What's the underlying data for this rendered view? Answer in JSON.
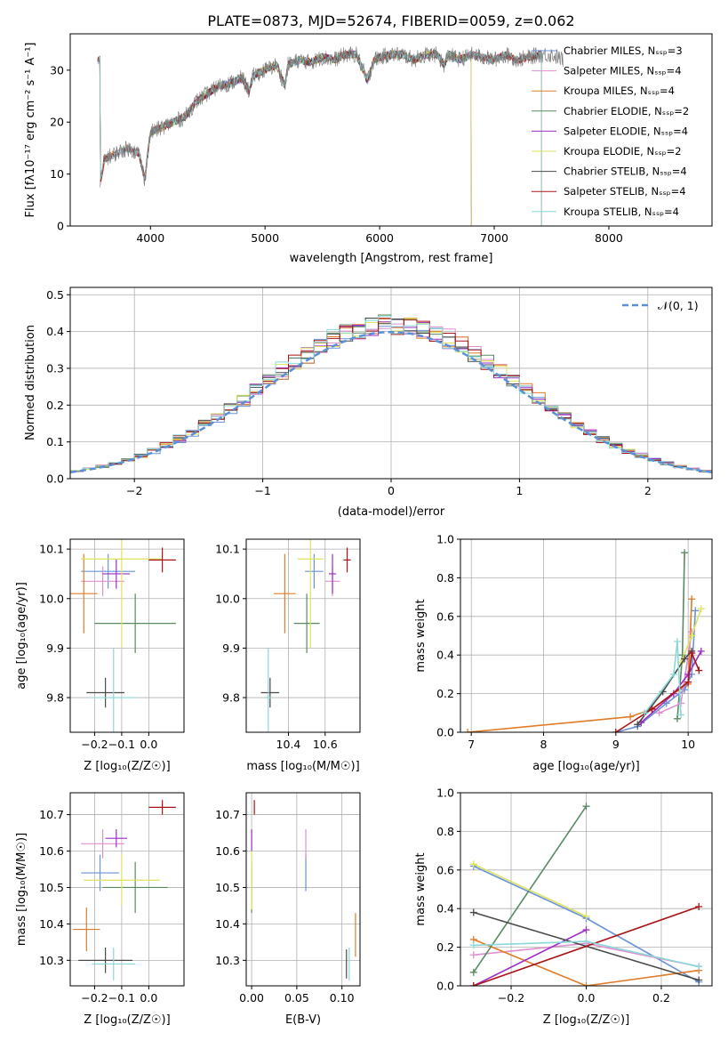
{
  "figure_title": "PLATE=0873, MJD=52674, FIBERID=0059, z=0.062",
  "colors": {
    "chabrier_miles": "#6a93d8",
    "salpeter_miles": "#e08fd0",
    "kroupa_miles": "#e07b28",
    "chabrier_elodie": "#5a8a62",
    "salpeter_elodie": "#9b2fc2",
    "kroupa_elodie": "#dde35a",
    "chabrier_stelib": "#4a4a4a",
    "salpeter_stelib": "#a81418",
    "kroupa_stelib": "#8ad8d8",
    "gaussian": "#5b8fd6"
  },
  "chart_data": [
    {
      "id": "spectrum",
      "type": "line",
      "title": "PLATE=0873, MJD=52674, FIBERID=0059, z=0.062",
      "xlabel": "wavelength [Angstrom, rest frame]",
      "ylabel": "Flux [fλ10⁻¹⁷ erg cm⁻² s⁻¹ A⁻¹]",
      "xlim": [
        3300,
        8900
      ],
      "ylim": [
        0,
        37
      ],
      "xticks": [
        "4000",
        "5000",
        "6000",
        "7000",
        "8000"
      ],
      "yticks": [
        "0",
        "10",
        "20",
        "30"
      ],
      "grid": false,
      "legend_position": "right",
      "data_trace": {
        "x": [
          3560,
          3600,
          3700,
          3800,
          3900,
          3950,
          4000,
          4100,
          4200,
          4300,
          4400,
          4500,
          4600,
          4700,
          4800,
          4861,
          4900,
          5000,
          5100,
          5175,
          5200,
          5300,
          5400,
          5500,
          5600,
          5700,
          5800,
          5893,
          5950,
          6000,
          6100,
          6200,
          6300,
          6400,
          6500,
          6563,
          6600,
          6700,
          6800,
          6900,
          7000,
          7100,
          7200,
          7300,
          7400,
          7500,
          7600
        ],
        "y": [
          8,
          13,
          14,
          15,
          14,
          9,
          18,
          19,
          20,
          21,
          24,
          25.5,
          27,
          27.5,
          28.5,
          26,
          29,
          30,
          31,
          27,
          31,
          32,
          31.5,
          32.5,
          32,
          33,
          33,
          28,
          32,
          32.5,
          33,
          33,
          32,
          33,
          33,
          31,
          33,
          32,
          33,
          32.5,
          32,
          33,
          32,
          32.5,
          33,
          33,
          32
        ]
      },
      "legend": [
        "Chabrier MILES, N_SSP=3",
        "Salpeter MILES, N_SSP=4",
        "Kroupa MILES, N_SSP=4",
        "Chabrier ELODIE, N_SSP=2",
        "Salpeter ELODIE, N_SSP=4",
        "Kroupa ELODIE, N_SSP=2",
        "Chabrier STELIB, N_SSP=4",
        "Salpeter STELIB, N_SSP=4",
        "Kroupa STELIB, N_SSP=4"
      ],
      "model_ranges": [
        {
          "name": "Chabrier MILES",
          "x": [
            3540,
            7410
          ]
        },
        {
          "name": "Salpeter MILES",
          "x": [
            3540,
            7410
          ]
        },
        {
          "name": "Kroupa MILES",
          "x": [
            3540,
            7410
          ]
        },
        {
          "name": "Chabrier ELODIE",
          "x": [
            3900,
            6800
          ]
        },
        {
          "name": "Salpeter ELODIE",
          "x": [
            3900,
            6800
          ]
        },
        {
          "name": "Kroupa ELODIE",
          "x": [
            3900,
            6800
          ]
        },
        {
          "name": "Chabrier STELIB",
          "x": [
            3200,
            7410
          ]
        },
        {
          "name": "Salpeter STELIB",
          "x": [
            3200,
            7410
          ]
        },
        {
          "name": "Kroupa STELIB",
          "x": [
            3200,
            7410
          ]
        }
      ]
    },
    {
      "id": "residual_hist",
      "type": "bar",
      "xlabel": "(data-model)/error",
      "ylabel": "Normed distribution",
      "xlim": [
        -2.5,
        2.5
      ],
      "ylim": [
        0,
        0.52
      ],
      "xticks": [
        "−2",
        "−1",
        "0",
        "1",
        "2"
      ],
      "yticks": [
        "0.0",
        "0.1",
        "0.2",
        "0.3",
        "0.4",
        "0.5"
      ],
      "grid": true,
      "legend_position": "top-right",
      "legend": [
        "𝒩(0, 1)"
      ],
      "bin_width": 0.1,
      "bins_note_hidden": false,
      "series_count": 9
    },
    {
      "id": "age_vs_Z",
      "type": "scatter",
      "xlabel": "Z [log₁₀(Z/Z☉)]",
      "ylabel": "age  [log₁₀(age/yr)]",
      "xlim": [
        -0.29,
        0.13
      ],
      "ylim": [
        9.73,
        10.12
      ],
      "xticks": [
        "−0.2",
        "−0.1",
        "0.0"
      ],
      "yticks": [
        "9.8",
        "9.9",
        "10.0",
        "10.1"
      ],
      "grid": true,
      "points": [
        {
          "name": "Chabrier MILES",
          "x": -0.15,
          "y": 10.055,
          "xerr": 0.1,
          "yerr": 0.035
        },
        {
          "name": "Salpeter MILES",
          "x": -0.17,
          "y": 10.035,
          "xerr": 0.08,
          "yerr": 0.03
        },
        {
          "name": "Kroupa MILES",
          "x": -0.24,
          "y": 10.01,
          "xerr": 0.05,
          "yerr": 0.08
        },
        {
          "name": "Chabrier ELODIE",
          "x": -0.05,
          "y": 9.95,
          "xerr": 0.15,
          "yerr": 0.06
        },
        {
          "name": "Salpeter ELODIE",
          "x": -0.12,
          "y": 10.05,
          "xerr": 0.05,
          "yerr": 0.03
        },
        {
          "name": "Kroupa ELODIE",
          "x": -0.1,
          "y": 10.08,
          "xerr": 0.15,
          "yerr": 0.18
        },
        {
          "name": "Chabrier STELIB",
          "x": -0.16,
          "y": 9.81,
          "xerr": 0.07,
          "yerr": 0.03
        },
        {
          "name": "Salpeter STELIB",
          "x": 0.05,
          "y": 10.078,
          "xerr": 0.05,
          "yerr": 0.025
        },
        {
          "name": "Kroupa STELIB",
          "x": -0.13,
          "y": 9.8,
          "xerr": 0.08,
          "yerr": 0.1
        }
      ]
    },
    {
      "id": "age_vs_mass",
      "type": "scatter",
      "xlabel": "mass [log₁₀(M/M☉)]",
      "ylabel": "",
      "xlim": [
        10.17,
        10.79
      ],
      "ylim": [
        9.73,
        10.12
      ],
      "xticks": [
        "10.4",
        "10.6"
      ],
      "yticks": [
        "9.8",
        "9.9",
        "10.0",
        "10.1"
      ],
      "grid": true,
      "points": [
        {
          "name": "Chabrier MILES",
          "x": 10.54,
          "y": 10.055,
          "xerr": 0.05,
          "yerr": 0.035
        },
        {
          "name": "Salpeter MILES",
          "x": 10.64,
          "y": 10.035,
          "xerr": 0.04,
          "yerr": 0.03
        },
        {
          "name": "Kroupa MILES",
          "x": 10.38,
          "y": 10.01,
          "xerr": 0.06,
          "yerr": 0.08
        },
        {
          "name": "Chabrier ELODIE",
          "x": 10.5,
          "y": 9.95,
          "xerr": 0.07,
          "yerr": 0.06
        },
        {
          "name": "Salpeter ELODIE",
          "x": 10.64,
          "y": 10.05,
          "xerr": 0.02,
          "yerr": 0.04
        },
        {
          "name": "Kroupa ELODIE",
          "x": 10.52,
          "y": 10.08,
          "xerr": 0.07,
          "yerr": 0.18
        },
        {
          "name": "Chabrier STELIB",
          "x": 10.3,
          "y": 9.81,
          "xerr": 0.05,
          "yerr": 0.03
        },
        {
          "name": "Salpeter STELIB",
          "x": 10.72,
          "y": 10.078,
          "xerr": 0.02,
          "yerr": 0.025
        },
        {
          "name": "Kroupa STELIB",
          "x": 10.29,
          "y": 9.8,
          "xerr": 0.02,
          "yerr": 0.1
        }
      ]
    },
    {
      "id": "weight_vs_age",
      "type": "line",
      "xlabel": "age  [log₁₀(age/yr)]",
      "ylabel": "mass weight",
      "xlim": [
        6.85,
        10.33
      ],
      "ylim": [
        0,
        1.0
      ],
      "xticks": [
        "7",
        "8",
        "9",
        "10"
      ],
      "yticks": [
        "0.0",
        "0.2",
        "0.4",
        "0.6",
        "0.8",
        "1.0"
      ],
      "grid": true,
      "series": [
        {
          "name": "Kroupa MILES",
          "x": [
            6.95,
            9.2,
            9.5,
            9.8,
            10.0,
            10.05
          ],
          "y": [
            0.0,
            0.08,
            0.12,
            0.2,
            0.25,
            0.69
          ]
        },
        {
          "name": "Chabrier ELODIE",
          "x": [
            9.85,
            9.92,
            9.95
          ],
          "y": [
            0.07,
            0.4,
            0.93
          ]
        },
        {
          "name": "Chabrier MILES",
          "x": [
            9.0,
            9.3,
            9.7,
            9.95,
            10.05,
            10.1
          ],
          "y": [
            0.0,
            0.03,
            0.15,
            0.22,
            0.3,
            0.63
          ]
        },
        {
          "name": "Salpeter MILES",
          "x": [
            9.6,
            9.9,
            10.05
          ],
          "y": [
            0.1,
            0.15,
            0.52
          ]
        },
        {
          "name": "Salpeter ELODIE",
          "x": [
            9.35,
            9.8,
            10.0,
            10.18
          ],
          "y": [
            0.05,
            0.2,
            0.3,
            0.42
          ]
        },
        {
          "name": "Kroupa ELODIE",
          "x": [
            9.9,
            10.05,
            10.18
          ],
          "y": [
            0.36,
            0.5,
            0.64
          ]
        },
        {
          "name": "Chabrier STELIB",
          "x": [
            9.3,
            9.65,
            9.95,
            10.05
          ],
          "y": [
            0.04,
            0.21,
            0.38,
            0.42
          ]
        },
        {
          "name": "Salpeter STELIB",
          "x": [
            9.0,
            9.5,
            10.0,
            10.05,
            10.15
          ],
          "y": [
            0.0,
            0.12,
            0.26,
            0.41,
            0.32
          ]
        },
        {
          "name": "Kroupa STELIB",
          "x": [
            9.4,
            9.8,
            9.85,
            9.9
          ],
          "y": [
            0.1,
            0.3,
            0.47,
            0.09
          ]
        }
      ]
    },
    {
      "id": "mass_vs_Z",
      "type": "scatter",
      "xlabel": "Z [log₁₀(Z/Z☉)]",
      "ylabel": "mass [log₁₀(M/M☉)]",
      "xlim": [
        -0.29,
        0.13
      ],
      "ylim": [
        10.23,
        10.76
      ],
      "xticks": [
        "−0.2",
        "−0.1",
        "0.0"
      ],
      "yticks": [
        "10.3",
        "10.4",
        "10.5",
        "10.6",
        "10.7"
      ],
      "grid": true,
      "points": [
        {
          "name": "Chabrier MILES",
          "x": -0.18,
          "y": 10.54,
          "xerr": 0.07,
          "yerr": 0.05
        },
        {
          "name": "Salpeter MILES",
          "x": -0.17,
          "y": 10.62,
          "xerr": 0.08,
          "yerr": 0.04
        },
        {
          "name": "Kroupa MILES",
          "x": -0.23,
          "y": 10.385,
          "xerr": 0.05,
          "yerr": 0.06
        },
        {
          "name": "Chabrier ELODIE",
          "x": -0.05,
          "y": 10.5,
          "xerr": 0.12,
          "yerr": 0.07
        },
        {
          "name": "Salpeter ELODIE",
          "x": -0.12,
          "y": 10.635,
          "xerr": 0.04,
          "yerr": 0.025
        },
        {
          "name": "Kroupa ELODIE",
          "x": -0.1,
          "y": 10.52,
          "xerr": 0.14,
          "yerr": 0.07
        },
        {
          "name": "Chabrier STELIB",
          "x": -0.16,
          "y": 10.3,
          "xerr": 0.1,
          "yerr": 0.035
        },
        {
          "name": "Salpeter STELIB",
          "x": 0.05,
          "y": 10.72,
          "xerr": 0.05,
          "yerr": 0.02
        },
        {
          "name": "Kroupa STELIB",
          "x": -0.13,
          "y": 10.29,
          "xerr": 0.08,
          "yerr": 0.045
        }
      ]
    },
    {
      "id": "mass_vs_ebv",
      "type": "scatter",
      "xlabel": "E(B-V)",
      "ylabel": "",
      "xlim": [
        -0.006,
        0.12
      ],
      "ylim": [
        10.23,
        10.76
      ],
      "xticks": [
        "0.00",
        "0.05",
        "0.10"
      ],
      "yticks": [
        "10.3",
        "10.4",
        "10.5",
        "10.6",
        "10.7"
      ],
      "grid": true,
      "points": [
        {
          "name": "Chabrier MILES",
          "x": 0.06,
          "y": 10.54,
          "xerr": 0.0,
          "yerr": 0.05
        },
        {
          "name": "Salpeter MILES",
          "x": 0.06,
          "y": 10.62,
          "xerr": 0.0,
          "yerr": 0.04
        },
        {
          "name": "Kroupa MILES",
          "x": 0.115,
          "y": 10.37,
          "xerr": 0.0,
          "yerr": 0.06
        },
        {
          "name": "Chabrier ELODIE",
          "x": 0.0,
          "y": 10.5,
          "xerr": 0.0,
          "yerr": 0.07
        },
        {
          "name": "Salpeter ELODIE",
          "x": 0.0,
          "y": 10.63,
          "xerr": 0.0,
          "yerr": 0.03
        },
        {
          "name": "Kroupa ELODIE",
          "x": 0.0,
          "y": 10.52,
          "xerr": 0.0,
          "yerr": 0.08
        },
        {
          "name": "Chabrier STELIB",
          "x": 0.105,
          "y": 10.29,
          "xerr": 0.0,
          "yerr": 0.04
        },
        {
          "name": "Salpeter STELIB",
          "x": 0.003,
          "y": 10.72,
          "xerr": 0.0,
          "yerr": 0.02
        },
        {
          "name": "Kroupa STELIB",
          "x": 0.108,
          "y": 10.29,
          "xerr": 0.0,
          "yerr": 0.045
        }
      ]
    },
    {
      "id": "weight_vs_Z",
      "type": "line",
      "xlabel": "Z [log₁₀(Z/Z☉)]",
      "ylabel": "mass weight",
      "xlim": [
        -0.335,
        0.335
      ],
      "ylim": [
        0,
        1.0
      ],
      "xticks": [
        "−0.2",
        "0.0",
        "0.2"
      ],
      "yticks": [
        "0.0",
        "0.2",
        "0.4",
        "0.6",
        "0.8",
        "1.0"
      ],
      "grid": true,
      "series": [
        {
          "name": "Chabrier MILES",
          "x": [
            -0.3,
            0.0,
            0.3
          ],
          "y": [
            0.62,
            0.35,
            0.02
          ]
        },
        {
          "name": "Salpeter MILES",
          "x": [
            -0.3,
            0.0,
            0.3
          ],
          "y": [
            0.16,
            0.22,
            0.1
          ]
        },
        {
          "name": "Kroupa MILES",
          "x": [
            -0.3,
            0.0,
            0.3
          ],
          "y": [
            0.24,
            0.0,
            0.08
          ]
        },
        {
          "name": "Chabrier ELODIE",
          "x": [
            -0.3,
            0.0
          ],
          "y": [
            0.07,
            0.93
          ]
        },
        {
          "name": "Salpeter ELODIE",
          "x": [
            -0.3,
            0.0
          ],
          "y": [
            0.0,
            0.29
          ]
        },
        {
          "name": "Kroupa ELODIE",
          "x": [
            -0.3,
            0.0
          ],
          "y": [
            0.63,
            0.36
          ]
        },
        {
          "name": "Chabrier STELIB",
          "x": [
            -0.3,
            0.3
          ],
          "y": [
            0.38,
            0.03
          ]
        },
        {
          "name": "Salpeter STELIB",
          "x": [
            -0.3,
            0.3
          ],
          "y": [
            0.0,
            0.41
          ]
        },
        {
          "name": "Kroupa STELIB",
          "x": [
            -0.3,
            0.0,
            0.3
          ],
          "y": [
            0.21,
            0.23,
            0.1
          ]
        }
      ]
    }
  ]
}
